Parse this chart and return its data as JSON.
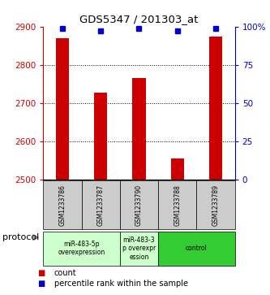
{
  "title": "GDS5347 / 201303_at",
  "samples": [
    "GSM1233786",
    "GSM1233787",
    "GSM1233790",
    "GSM1233788",
    "GSM1233789"
  ],
  "counts": [
    2870,
    2728,
    2765,
    2557,
    2874
  ],
  "percentiles": [
    99,
    97,
    99,
    97,
    99
  ],
  "ylim_left": [
    2500,
    2900
  ],
  "ylim_right": [
    0,
    100
  ],
  "yticks_left": [
    2500,
    2600,
    2700,
    2800,
    2900
  ],
  "yticks_right": [
    0,
    25,
    50,
    75,
    100
  ],
  "bar_color": "#cc0000",
  "dot_color": "#0000cc",
  "protocol_groups": [
    {
      "label": "miR-483-5p\noverexpression",
      "color": "#ccffcc",
      "start": 0,
      "end": 2
    },
    {
      "label": "miR-483-3\np overexpr\nession",
      "color": "#ccffcc",
      "start": 2,
      "end": 3
    },
    {
      "label": "control",
      "color": "#33cc33",
      "start": 3,
      "end": 5
    }
  ],
  "protocol_label": "protocol",
  "legend_count_label": "count",
  "legend_percentile_label": "percentile rank within the sample",
  "bg_color": "#ffffff",
  "grid_color": "#888888",
  "label_color_left": "#cc0000",
  "label_color_right": "#0000cc",
  "sample_box_color": "#cccccc"
}
